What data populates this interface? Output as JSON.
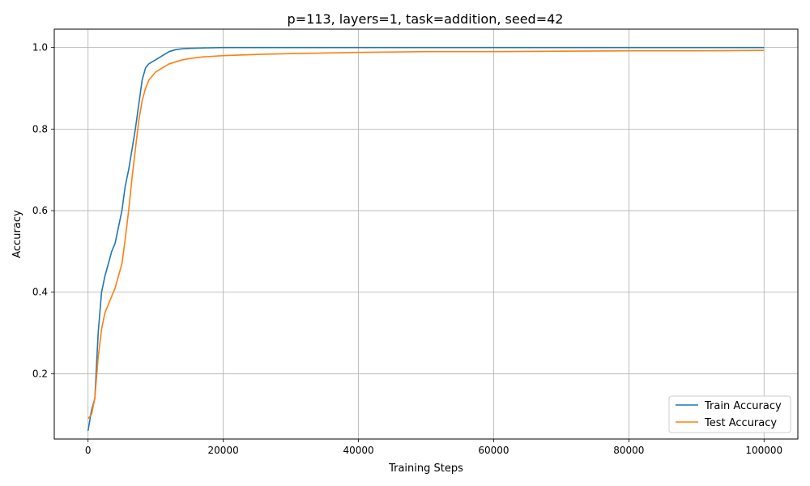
{
  "chart_data": {
    "type": "line",
    "title": "p=113, layers=1, task=addition, seed=42",
    "xlabel": "Training Steps",
    "ylabel": "Accuracy",
    "xlim": [
      -5000,
      105000
    ],
    "ylim": [
      0.04,
      1.045
    ],
    "x_ticks": [
      0,
      20000,
      40000,
      60000,
      80000,
      100000
    ],
    "x_tick_labels": [
      "0",
      "20000",
      "40000",
      "60000",
      "80000",
      "100000"
    ],
    "y_ticks": [
      0.2,
      0.4,
      0.6,
      0.8,
      1.0
    ],
    "y_tick_labels": [
      "0.2",
      "0.4",
      "0.6",
      "0.8",
      "1.0"
    ],
    "grid": true,
    "legend_position": "bottom-right",
    "series": [
      {
        "name": "Train Accuracy",
        "color": "#1f77b4",
        "x": [
          0,
          500,
          1000,
          1500,
          2000,
          2500,
          3000,
          3500,
          4000,
          4500,
          5000,
          5500,
          6000,
          6500,
          7000,
          7500,
          8000,
          8500,
          9000,
          10000,
          11000,
          12000,
          13000,
          14000,
          15000,
          17000,
          20000,
          25000,
          30000,
          40000,
          50000,
          60000,
          70000,
          80000,
          90000,
          100000
        ],
        "values": [
          0.06,
          0.11,
          0.14,
          0.3,
          0.4,
          0.44,
          0.47,
          0.5,
          0.52,
          0.56,
          0.6,
          0.66,
          0.7,
          0.75,
          0.8,
          0.86,
          0.92,
          0.95,
          0.96,
          0.97,
          0.98,
          0.99,
          0.995,
          0.997,
          0.998,
          0.999,
          1.0,
          1.0,
          1.0,
          1.0,
          1.0,
          1.0,
          1.0,
          1.0,
          1.0,
          1.0
        ]
      },
      {
        "name": "Test Accuracy",
        "color": "#ff7f0e",
        "x": [
          0,
          500,
          1000,
          1500,
          2000,
          2500,
          3000,
          3500,
          4000,
          4500,
          5000,
          5500,
          6000,
          6500,
          7000,
          7500,
          8000,
          8500,
          9000,
          10000,
          11000,
          12000,
          13000,
          14000,
          15000,
          17000,
          20000,
          25000,
          30000,
          40000,
          50000,
          60000,
          70000,
          80000,
          90000,
          100000
        ],
        "values": [
          0.09,
          0.1,
          0.14,
          0.24,
          0.31,
          0.35,
          0.37,
          0.39,
          0.41,
          0.44,
          0.47,
          0.53,
          0.6,
          0.68,
          0.75,
          0.82,
          0.87,
          0.9,
          0.92,
          0.94,
          0.95,
          0.96,
          0.965,
          0.97,
          0.973,
          0.977,
          0.98,
          0.983,
          0.985,
          0.988,
          0.99,
          0.99,
          0.991,
          0.992,
          0.992,
          0.993
        ]
      }
    ]
  }
}
